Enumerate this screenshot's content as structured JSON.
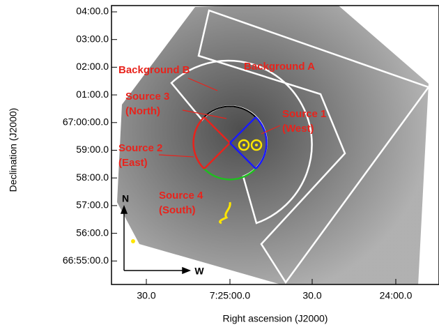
{
  "figure": {
    "x_axis": {
      "title": "Right ascension (J2000)",
      "ticks": [
        "30.0",
        "7:25:00.0",
        "30.0",
        "24:00.0"
      ]
    },
    "y_axis": {
      "title": "Declination (J2000)",
      "ticks": [
        "04:00.0",
        "03:00.0",
        "02:00.0",
        "01:00.0",
        "67:00:00.0",
        "59:00.0",
        "58:00.0",
        "57:00.0",
        "56:00.0",
        "66:55:00.0"
      ]
    },
    "regions": [
      {
        "lines": [
          "Background B"
        ]
      },
      {
        "lines": [
          "Background A"
        ]
      },
      {
        "lines": [
          "Source 3",
          "(North)"
        ]
      },
      {
        "lines": [
          "Source 1",
          "(West)"
        ]
      },
      {
        "lines": [
          "Source 2",
          "(East)"
        ]
      },
      {
        "lines": [
          "Source 4",
          "(South)"
        ]
      }
    ],
    "compass": {
      "north": "N",
      "west": "W"
    }
  }
}
